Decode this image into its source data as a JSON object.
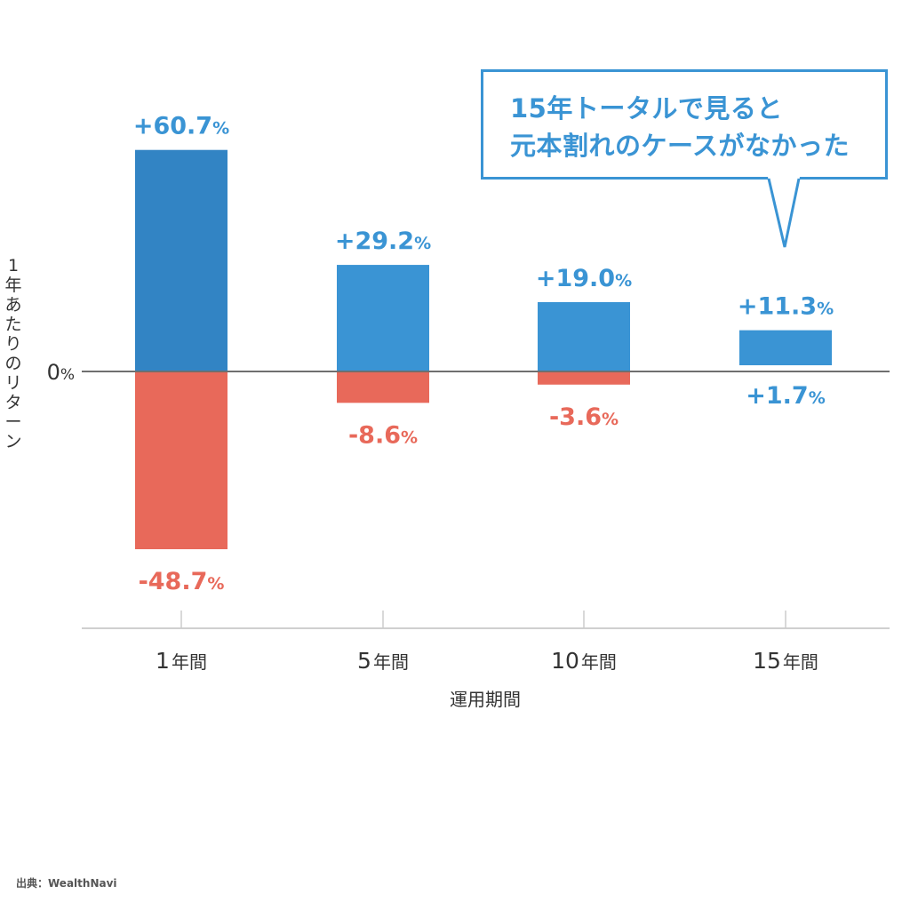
{
  "chart_data": {
    "type": "bar",
    "categories": [
      "1年間",
      "5年間",
      "10年間",
      "15年間"
    ],
    "series": [
      {
        "name": "max",
        "values": [
          60.7,
          29.2,
          19.0,
          11.3
        ],
        "labels": [
          "+60.7",
          "+29.2",
          "+19.0",
          "+11.3"
        ],
        "color": "#3a94d4"
      },
      {
        "name": "min",
        "values": [
          -48.7,
          -8.6,
          -3.6,
          1.7
        ],
        "labels": [
          "-48.7",
          "-8.6",
          "-3.6",
          "+1.7"
        ],
        "color": "#e8695a"
      }
    ],
    "first_bar_color": "#3284c4",
    "percent_sign": "%",
    "zero_label": "0",
    "xlabel": "運用期間",
    "ylabel": "1年あたりのリターン",
    "ylim": [
      -70,
      80
    ],
    "grid": false
  },
  "callout": {
    "line1": "15年トータルで見ると",
    "line2": "元本割れのケースがなかった"
  },
  "source": "出典：WealthNavi"
}
